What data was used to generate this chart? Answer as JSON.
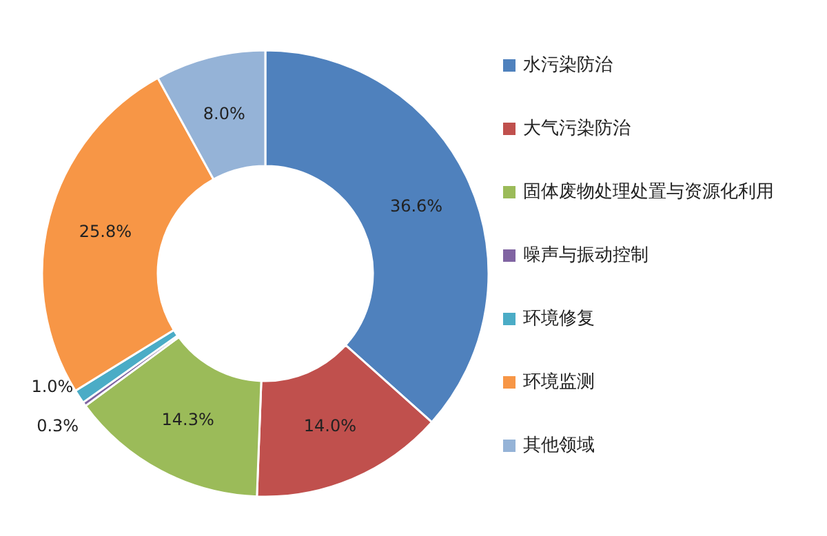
{
  "chart_data": {
    "type": "donut",
    "categories": [
      "水污染防治",
      "大气污染防治",
      "固体废物处理处置与资源化利用",
      "噪声与振动控制",
      "环境修复",
      "环境监测",
      "其他领域"
    ],
    "values": [
      36.6,
      14.0,
      14.3,
      0.3,
      1.0,
      25.8,
      8.0
    ],
    "value_labels": [
      "36.6%",
      "14.0%",
      "14.3%",
      "0.3%",
      "1.0%",
      "25.8%",
      "8.0%"
    ],
    "colors": [
      "#4f81bd",
      "#c0504d",
      "#9bbb59",
      "#8064a2",
      "#4bacc6",
      "#f79646",
      "#95b3d7"
    ],
    "legend": "right"
  }
}
